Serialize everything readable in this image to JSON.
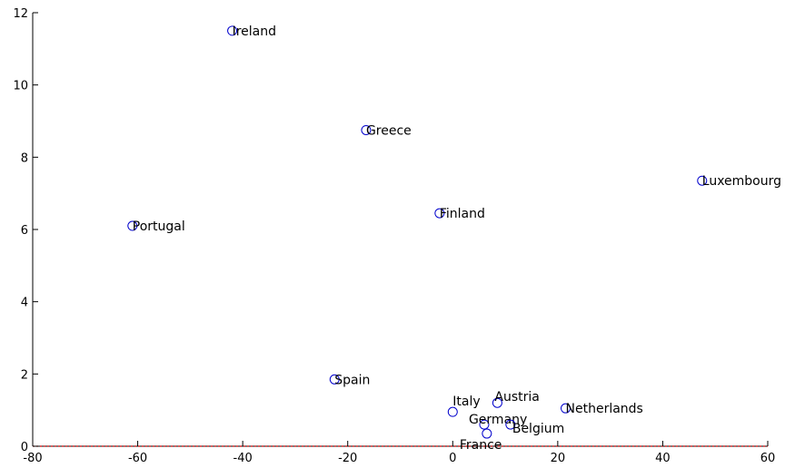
{
  "chart_data": {
    "type": "scatter",
    "title": "",
    "xlabel": "",
    "ylabel": "",
    "xlim": [
      -80,
      60
    ],
    "ylim": [
      0,
      12
    ],
    "xticks": [
      -80,
      -60,
      -40,
      -20,
      0,
      20,
      40,
      60
    ],
    "yticks": [
      0,
      2,
      4,
      6,
      8,
      10,
      12
    ],
    "grid": false,
    "marker_color": "#0000cc",
    "baseline_color": "#cc0000",
    "points": [
      {
        "label": "Ireland",
        "x": -42,
        "y": 11.5
      },
      {
        "label": "Greece",
        "x": -16.5,
        "y": 8.75
      },
      {
        "label": "Luxembourg",
        "x": 47.5,
        "y": 7.35
      },
      {
        "label": "Finland",
        "x": -2.5,
        "y": 6.45
      },
      {
        "label": "Portugal",
        "x": -61,
        "y": 6.1
      },
      {
        "label": "Spain",
        "x": -22.5,
        "y": 1.85
      },
      {
        "label": "Austria",
        "x": 8.5,
        "y": 1.2
      },
      {
        "label": "Italy",
        "x": 0,
        "y": 0.95
      },
      {
        "label": "Netherlands",
        "x": 21.5,
        "y": 1.05
      },
      {
        "label": "Germany",
        "x": 6,
        "y": 0.6
      },
      {
        "label": "Belgium",
        "x": 11,
        "y": 0.6
      },
      {
        "label": "France",
        "x": 6.5,
        "y": 0.35
      }
    ]
  }
}
